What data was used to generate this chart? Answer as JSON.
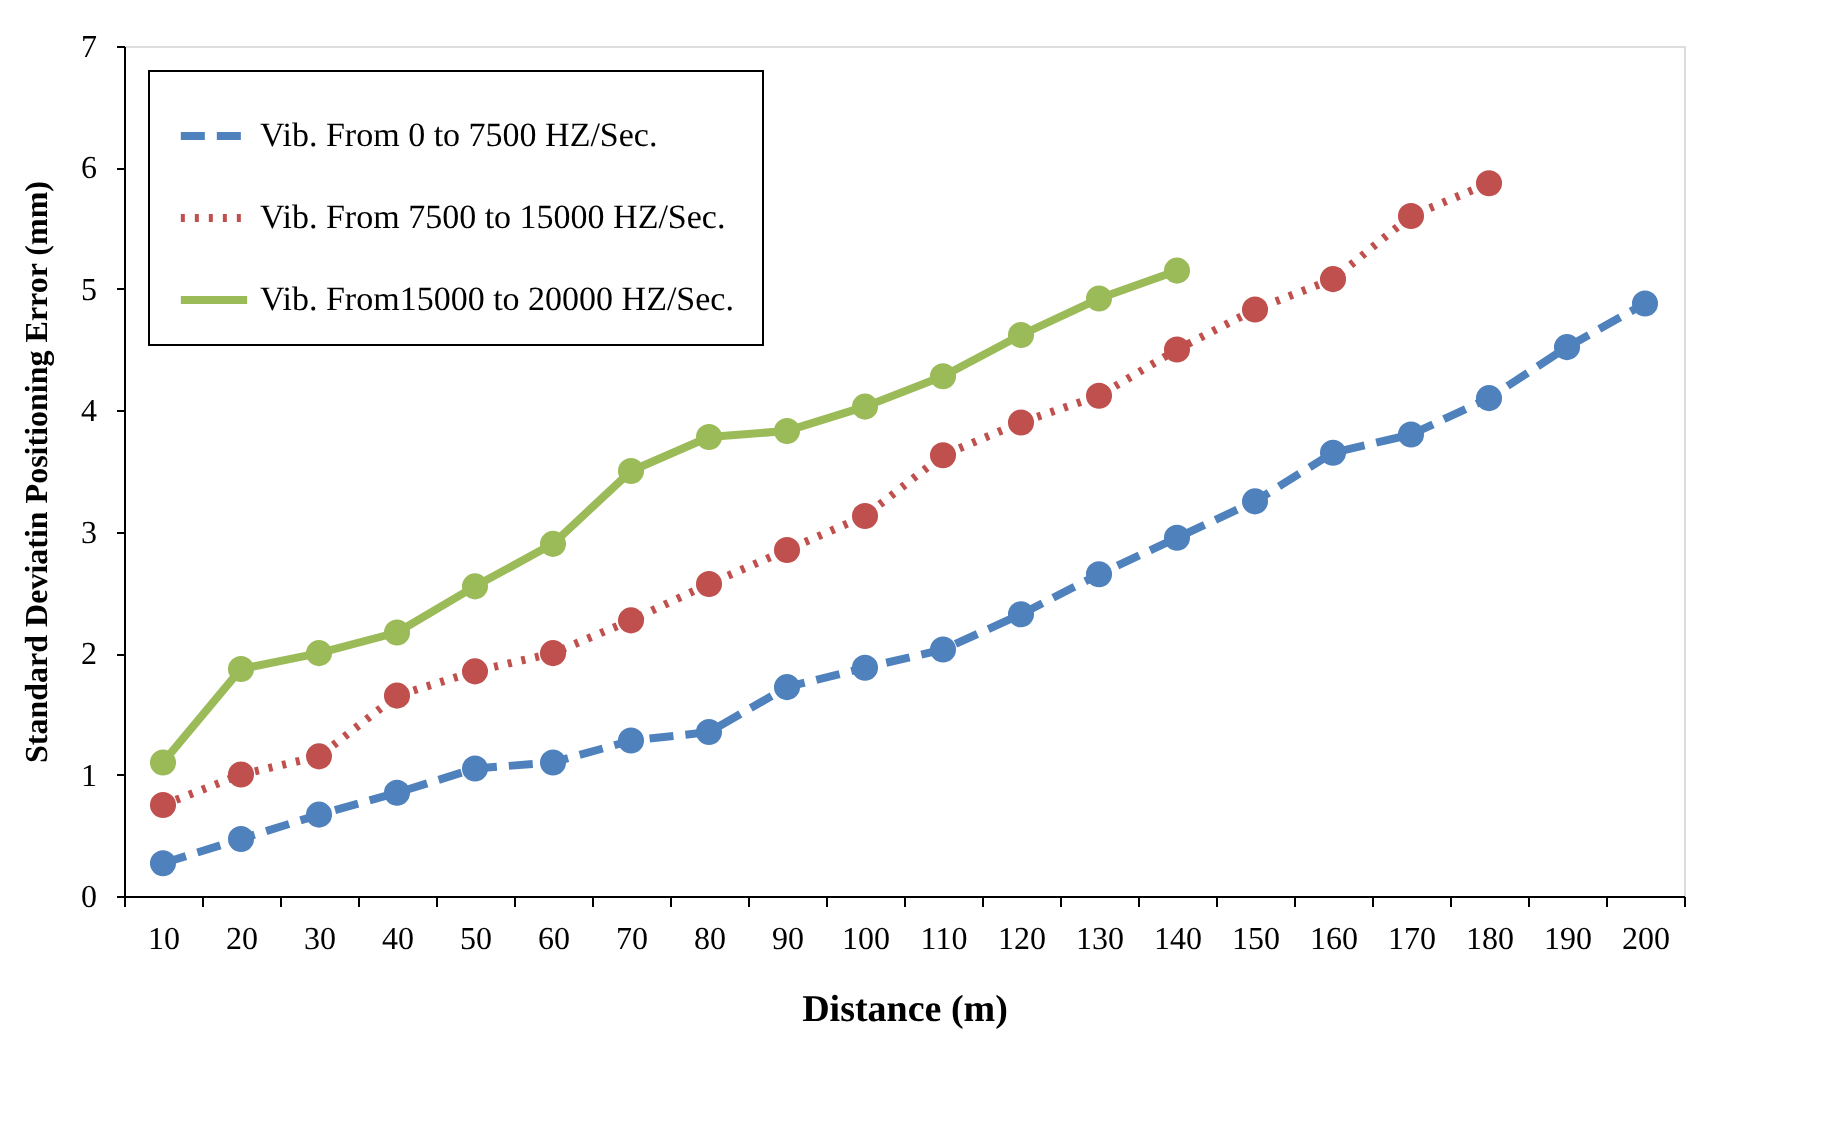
{
  "chart_data": {
    "type": "line",
    "xlabel": "Distance (m)",
    "ylabel": "Standard Deviatin Positioning Error (mm)",
    "categories": [
      "10",
      "20",
      "30",
      "40",
      "50",
      "60",
      "70",
      "80",
      "90",
      "100",
      "110",
      "120",
      "130",
      "140",
      "150",
      "160",
      "170",
      "180",
      "190",
      "200"
    ],
    "ylim": [
      0,
      7
    ],
    "yticks": [
      0,
      1,
      2,
      3,
      4,
      5,
      6,
      7
    ],
    "grid": false,
    "legend": "top left",
    "series": [
      {
        "name": "Vib. From 0 to 7500 HZ/Sec.",
        "color": "#4f81bd",
        "line_style": "dashed",
        "marker": "circle",
        "values": [
          0.27,
          0.47,
          0.67,
          0.85,
          1.05,
          1.1,
          1.28,
          1.35,
          1.72,
          1.88,
          2.03,
          2.32,
          2.65,
          2.95,
          3.25,
          3.65,
          3.8,
          4.1,
          4.52,
          4.88
        ]
      },
      {
        "name": "Vib. From 7500 to 15000 HZ/Sec.",
        "color": "#c0504d",
        "line_style": "dotted",
        "marker": "circle",
        "values": [
          0.75,
          1.0,
          1.15,
          1.65,
          1.85,
          2.0,
          2.27,
          2.57,
          2.85,
          3.13,
          3.63,
          3.9,
          4.12,
          4.5,
          4.83,
          5.08,
          5.6,
          5.87,
          null,
          null
        ]
      },
      {
        "name": "Vib. From15000 to 20000 HZ/Sec.",
        "color": "#9bbb59",
        "line_style": "solid",
        "marker": "circle",
        "values": [
          1.1,
          1.87,
          2.0,
          2.17,
          2.55,
          2.9,
          3.5,
          3.78,
          3.83,
          4.03,
          4.28,
          4.62,
          4.92,
          5.15,
          null,
          null,
          null,
          null,
          null,
          null
        ]
      }
    ]
  }
}
